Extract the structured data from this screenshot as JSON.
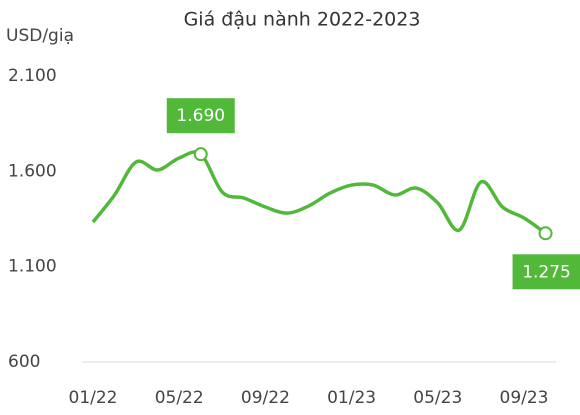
{
  "chart_data": {
    "type": "line",
    "title": "Giá đậu nành 2022-2023",
    "y_label": "USD/giạ",
    "categories": [
      "01/22",
      null,
      null,
      null,
      "05/22",
      null,
      null,
      null,
      "09/22",
      null,
      null,
      null,
      "01/23",
      null,
      null,
      null,
      "05/23",
      null,
      null,
      null,
      "09/23",
      null
    ],
    "series": [
      {
        "name": "Giá đậu nành",
        "color": "#52b83a",
        "values": [
          1334,
          1476,
          1649,
          1607,
          1670,
          1690,
          1491,
          1460,
          1413,
          1381,
          1418,
          1486,
          1528,
          1528,
          1476,
          1512,
          1434,
          1292,
          1544,
          1413,
          1355,
          1275
        ],
        "value_labels": [
          null,
          null,
          null,
          null,
          null,
          "1.690",
          null,
          null,
          null,
          null,
          null,
          null,
          null,
          null,
          null,
          null,
          null,
          null,
          null,
          null,
          null,
          "1.275"
        ]
      }
    ],
    "ylim": [
      600,
      2100
    ],
    "yticks": [
      {
        "value": 600,
        "label": "600"
      },
      {
        "value": 1100,
        "label": "1.100"
      },
      {
        "value": 1600,
        "label": "1.600"
      },
      {
        "value": 2100,
        "label": "2.100"
      }
    ],
    "grid": false
  }
}
